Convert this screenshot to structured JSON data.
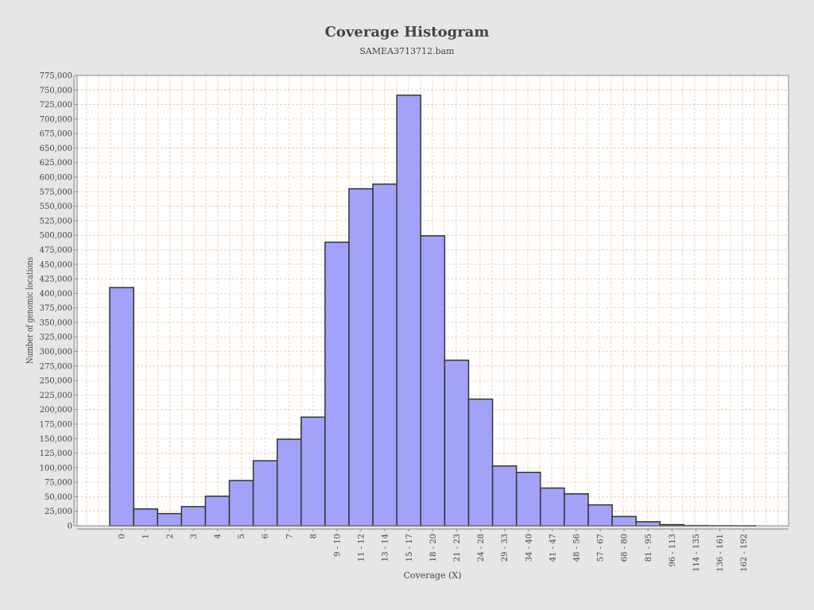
{
  "chart_data": {
    "type": "bar",
    "title": "Coverage Histogram",
    "subtitle": "SAMEA3713712.bam",
    "xlabel": "Coverage (X)",
    "ylabel": "Number of genomic locations",
    "ylim": [
      0,
      775000
    ],
    "ytick_step": 25000,
    "grid": true,
    "categories": [
      "0",
      "1",
      "2",
      "3",
      "4",
      "5",
      "6",
      "7",
      "8",
      "9 - 10",
      "11 - 12",
      "13 - 14",
      "15 - 17",
      "18 - 20",
      "21 - 23",
      "24 - 28",
      "29 - 33",
      "34 - 40",
      "41 - 47",
      "48 - 56",
      "57 - 67",
      "68 - 80",
      "81 - 95",
      "96 - 113",
      "114 - 135",
      "136 - 161",
      "162 - 192"
    ],
    "values": [
      410000,
      29000,
      21000,
      33000,
      51000,
      78000,
      112000,
      149000,
      187000,
      488000,
      580000,
      588000,
      741000,
      499000,
      285000,
      218000,
      103000,
      92000,
      65000,
      55000,
      36000,
      16000,
      7000,
      2000,
      500,
      300,
      200
    ],
    "colors": {
      "bar": "#a2a2f8",
      "bar_edge": "#333333",
      "grid": "#f0c8a8",
      "plot_bg": "#ffffff",
      "page_bg": "#e6e6e6"
    }
  }
}
